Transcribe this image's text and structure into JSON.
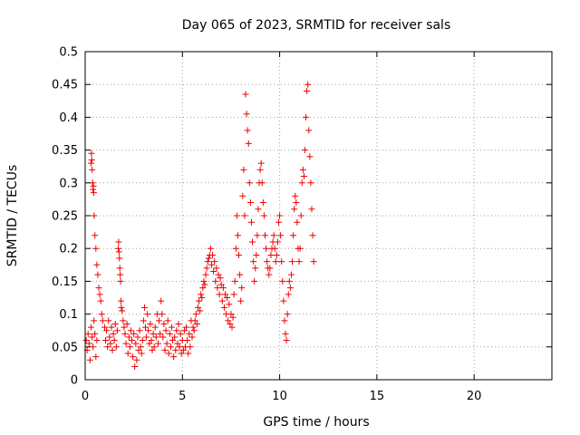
{
  "chart_data": {
    "type": "scatter",
    "title": "Day 065 of 2023, SRMTID for receiver sals",
    "xlabel": "GPS time / hours",
    "ylabel": "SRMTID / TECUs",
    "xlim": [
      0,
      24
    ],
    "ylim": [
      0,
      0.5
    ],
    "xticks": [
      0,
      5,
      10,
      15,
      20
    ],
    "xtick_labels": [
      "0",
      "5",
      "10",
      "15",
      "20"
    ],
    "yticks": [
      0,
      0.05,
      0.1,
      0.15,
      0.2,
      0.25,
      0.3,
      0.35,
      0.4,
      0.45,
      0.5
    ],
    "ytick_labels": [
      "0",
      "0.05",
      "0.1",
      "0.15",
      "0.2",
      "0.25",
      "0.3",
      "0.35",
      "0.4",
      "0.45",
      "0.5"
    ],
    "grid": true,
    "marker": "plus",
    "color": "#ee0000",
    "series": [
      {
        "name": "SRMTID",
        "points": [
          [
            0.05,
            0.06
          ],
          [
            0.1,
            0.045
          ],
          [
            0.15,
            0.07
          ],
          [
            0.2,
            0.055
          ],
          [
            0.25,
            0.03
          ],
          [
            0.3,
            0.08
          ],
          [
            0.35,
            0.065
          ],
          [
            0.4,
            0.05
          ],
          [
            0.45,
            0.09
          ],
          [
            0.5,
            0.07
          ],
          [
            0.55,
            0.035
          ],
          [
            0.6,
            0.06
          ],
          [
            0.3,
            0.33
          ],
          [
            0.32,
            0.345
          ],
          [
            0.34,
            0.335
          ],
          [
            0.36,
            0.32
          ],
          [
            0.38,
            0.3
          ],
          [
            0.4,
            0.29
          ],
          [
            0.42,
            0.295
          ],
          [
            0.44,
            0.285
          ],
          [
            0.46,
            0.25
          ],
          [
            0.5,
            0.22
          ],
          [
            0.55,
            0.2
          ],
          [
            0.6,
            0.175
          ],
          [
            0.65,
            0.16
          ],
          [
            0.7,
            0.14
          ],
          [
            0.75,
            0.13
          ],
          [
            0.8,
            0.12
          ],
          [
            0.85,
            0.1
          ],
          [
            0.9,
            0.09
          ],
          [
            1.0,
            0.08
          ],
          [
            1.05,
            0.06
          ],
          [
            1.1,
            0.075
          ],
          [
            1.15,
            0.05
          ],
          [
            1.2,
            0.09
          ],
          [
            1.25,
            0.065
          ],
          [
            1.3,
            0.055
          ],
          [
            1.35,
            0.08
          ],
          [
            1.4,
            0.045
          ],
          [
            1.45,
            0.07
          ],
          [
            1.5,
            0.06
          ],
          [
            1.55,
            0.085
          ],
          [
            1.6,
            0.05
          ],
          [
            1.65,
            0.075
          ],
          [
            1.7,
            0.2
          ],
          [
            1.72,
            0.21
          ],
          [
            1.74,
            0.195
          ],
          [
            1.76,
            0.185
          ],
          [
            1.78,
            0.17
          ],
          [
            1.8,
            0.16
          ],
          [
            1.82,
            0.15
          ],
          [
            1.84,
            0.12
          ],
          [
            1.86,
            0.11
          ],
          [
            1.9,
            0.105
          ],
          [
            1.95,
            0.09
          ],
          [
            2.0,
            0.08
          ],
          [
            2.05,
            0.07
          ],
          [
            2.1,
            0.055
          ],
          [
            2.15,
            0.085
          ],
          [
            2.2,
            0.04
          ],
          [
            2.25,
            0.065
          ],
          [
            2.3,
            0.05
          ],
          [
            2.35,
            0.075
          ],
          [
            2.4,
            0.06
          ],
          [
            2.45,
            0.035
          ],
          [
            2.5,
            0.07
          ],
          [
            2.55,
            0.02
          ],
          [
            2.6,
            0.055
          ],
          [
            2.65,
            0.03
          ],
          [
            2.7,
            0.065
          ],
          [
            2.75,
            0.045
          ],
          [
            2.8,
            0.075
          ],
          [
            2.85,
            0.05
          ],
          [
            2.9,
            0.04
          ],
          [
            2.95,
            0.06
          ],
          [
            3.0,
            0.09
          ],
          [
            3.05,
            0.11
          ],
          [
            3.1,
            0.08
          ],
          [
            3.15,
            0.065
          ],
          [
            3.2,
            0.1
          ],
          [
            3.25,
            0.075
          ],
          [
            3.3,
            0.055
          ],
          [
            3.35,
            0.085
          ],
          [
            3.4,
            0.06
          ],
          [
            3.45,
            0.045
          ],
          [
            3.5,
            0.07
          ],
          [
            3.55,
            0.05
          ],
          [
            3.6,
            0.08
          ],
          [
            3.65,
            0.065
          ],
          [
            3.7,
            0.1
          ],
          [
            3.75,
            0.055
          ],
          [
            3.8,
            0.09
          ],
          [
            3.85,
            0.07
          ],
          [
            3.9,
            0.12
          ],
          [
            3.95,
            0.1
          ],
          [
            4.0,
            0.065
          ],
          [
            4.05,
            0.085
          ],
          [
            4.1,
            0.045
          ],
          [
            4.15,
            0.075
          ],
          [
            4.2,
            0.055
          ],
          [
            4.25,
            0.09
          ],
          [
            4.3,
            0.04
          ],
          [
            4.35,
            0.07
          ],
          [
            4.4,
            0.05
          ],
          [
            4.45,
            0.08
          ],
          [
            4.5,
            0.06
          ],
          [
            4.55,
            0.035
          ],
          [
            4.6,
            0.065
          ],
          [
            4.65,
            0.045
          ],
          [
            4.7,
            0.075
          ],
          [
            4.75,
            0.055
          ],
          [
            4.8,
            0.085
          ],
          [
            4.85,
            0.05
          ],
          [
            4.9,
            0.07
          ],
          [
            4.95,
            0.04
          ],
          [
            5.0,
            0.06
          ],
          [
            5.05,
            0.045
          ],
          [
            5.1,
            0.075
          ],
          [
            5.15,
            0.05
          ],
          [
            5.2,
            0.08
          ],
          [
            5.25,
            0.06
          ],
          [
            5.3,
            0.04
          ],
          [
            5.35,
            0.07
          ],
          [
            5.4,
            0.05
          ],
          [
            5.45,
            0.09
          ],
          [
            5.5,
            0.065
          ],
          [
            5.55,
            0.08
          ],
          [
            5.6,
            0.075
          ],
          [
            5.65,
            0.09
          ],
          [
            5.7,
            0.1
          ],
          [
            5.75,
            0.085
          ],
          [
            5.8,
            0.11
          ],
          [
            5.85,
            0.12
          ],
          [
            5.9,
            0.105
          ],
          [
            5.95,
            0.13
          ],
          [
            6.0,
            0.125
          ],
          [
            6.05,
            0.14
          ],
          [
            6.1,
            0.15
          ],
          [
            6.15,
            0.145
          ],
          [
            6.2,
            0.16
          ],
          [
            6.25,
            0.17
          ],
          [
            6.3,
            0.18
          ],
          [
            6.35,
            0.185
          ],
          [
            6.4,
            0.19
          ],
          [
            6.45,
            0.2
          ],
          [
            6.5,
            0.175
          ],
          [
            6.55,
            0.19
          ],
          [
            6.6,
            0.165
          ],
          [
            6.65,
            0.18
          ],
          [
            6.7,
            0.15
          ],
          [
            6.75,
            0.17
          ],
          [
            6.8,
            0.14
          ],
          [
            6.85,
            0.16
          ],
          [
            6.9,
            0.13
          ],
          [
            6.95,
            0.155
          ],
          [
            7.0,
            0.145
          ],
          [
            7.05,
            0.12
          ],
          [
            7.1,
            0.14
          ],
          [
            7.15,
            0.11
          ],
          [
            7.2,
            0.13
          ],
          [
            7.25,
            0.1
          ],
          [
            7.3,
            0.125
          ],
          [
            7.35,
            0.09
          ],
          [
            7.4,
            0.115
          ],
          [
            7.45,
            0.085
          ],
          [
            7.5,
            0.1
          ],
          [
            7.55,
            0.08
          ],
          [
            7.6,
            0.095
          ],
          [
            7.65,
            0.13
          ],
          [
            7.7,
            0.15
          ],
          [
            7.75,
            0.2
          ],
          [
            7.8,
            0.25
          ],
          [
            7.85,
            0.22
          ],
          [
            7.9,
            0.19
          ],
          [
            7.95,
            0.16
          ],
          [
            8.0,
            0.12
          ],
          [
            8.05,
            0.14
          ],
          [
            8.1,
            0.28
          ],
          [
            8.15,
            0.32
          ],
          [
            8.2,
            0.25
          ],
          [
            8.25,
            0.435
          ],
          [
            8.3,
            0.405
          ],
          [
            8.35,
            0.38
          ],
          [
            8.4,
            0.36
          ],
          [
            8.45,
            0.3
          ],
          [
            8.5,
            0.27
          ],
          [
            8.55,
            0.24
          ],
          [
            8.6,
            0.21
          ],
          [
            8.65,
            0.18
          ],
          [
            8.7,
            0.15
          ],
          [
            8.75,
            0.17
          ],
          [
            8.8,
            0.19
          ],
          [
            8.85,
            0.22
          ],
          [
            8.9,
            0.26
          ],
          [
            8.95,
            0.3
          ],
          [
            9.0,
            0.32
          ],
          [
            9.05,
            0.33
          ],
          [
            9.1,
            0.3
          ],
          [
            9.15,
            0.27
          ],
          [
            9.2,
            0.25
          ],
          [
            9.25,
            0.22
          ],
          [
            9.3,
            0.2
          ],
          [
            9.35,
            0.18
          ],
          [
            9.4,
            0.17
          ],
          [
            9.45,
            0.16
          ],
          [
            9.5,
            0.17
          ],
          [
            9.55,
            0.19
          ],
          [
            9.6,
            0.2
          ],
          [
            9.65,
            0.21
          ],
          [
            9.7,
            0.22
          ],
          [
            9.75,
            0.2
          ],
          [
            9.8,
            0.18
          ],
          [
            9.85,
            0.19
          ],
          [
            9.9,
            0.21
          ],
          [
            9.95,
            0.24
          ],
          [
            10.0,
            0.25
          ],
          [
            10.05,
            0.22
          ],
          [
            10.1,
            0.18
          ],
          [
            10.15,
            0.15
          ],
          [
            10.2,
            0.12
          ],
          [
            10.25,
            0.09
          ],
          [
            10.3,
            0.07
          ],
          [
            10.35,
            0.06
          ],
          [
            10.4,
            0.1
          ],
          [
            10.45,
            0.13
          ],
          [
            10.5,
            0.15
          ],
          [
            10.55,
            0.14
          ],
          [
            10.6,
            0.16
          ],
          [
            10.65,
            0.18
          ],
          [
            10.7,
            0.22
          ],
          [
            10.75,
            0.26
          ],
          [
            10.8,
            0.28
          ],
          [
            10.85,
            0.27
          ],
          [
            10.9,
            0.24
          ],
          [
            10.95,
            0.2
          ],
          [
            11.0,
            0.18
          ],
          [
            11.05,
            0.2
          ],
          [
            11.1,
            0.25
          ],
          [
            11.15,
            0.3
          ],
          [
            11.2,
            0.32
          ],
          [
            11.25,
            0.31
          ],
          [
            11.3,
            0.35
          ],
          [
            11.35,
            0.4
          ],
          [
            11.4,
            0.44
          ],
          [
            11.45,
            0.45
          ],
          [
            11.5,
            0.38
          ],
          [
            11.55,
            0.34
          ],
          [
            11.6,
            0.3
          ],
          [
            11.65,
            0.26
          ],
          [
            11.7,
            0.22
          ],
          [
            11.75,
            0.18
          ]
        ]
      }
    ]
  }
}
